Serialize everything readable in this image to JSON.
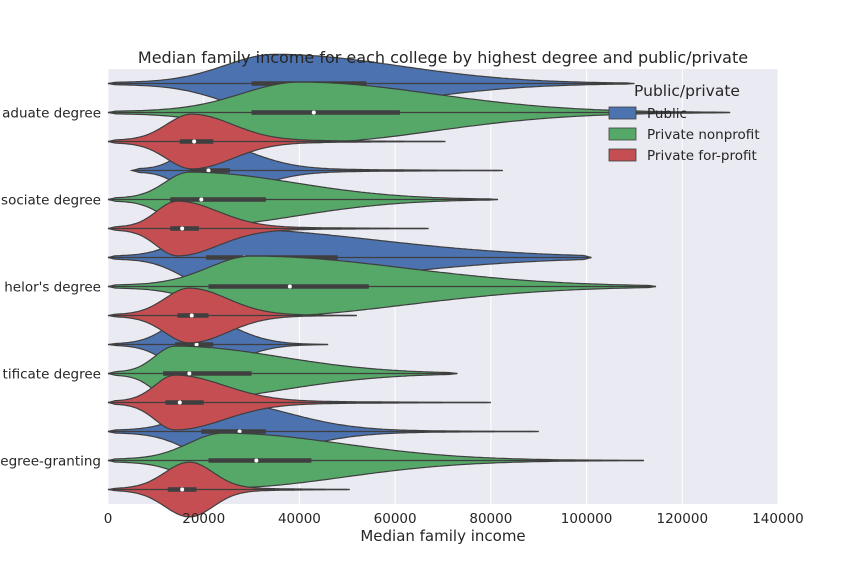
{
  "chart_data": {
    "type": "violin",
    "title": "Median family income for each college by highest degree and public/private",
    "xlabel": "Median family income",
    "ylabel": "",
    "xlim": [
      0,
      140000
    ],
    "xticks": [
      0,
      20000,
      40000,
      60000,
      80000,
      100000,
      120000,
      140000
    ],
    "xtick_labels": [
      "0",
      "20000",
      "40000",
      "60000",
      "80000",
      "100000",
      "120000",
      "140000"
    ],
    "orientation": "horizontal",
    "grid": true,
    "categories": [
      "Graduate degree",
      "Associate degree",
      "Bachelor's degree",
      "Certificate degree",
      "Non-degree-granting"
    ],
    "category_labels_visible": [
      "aduate degree",
      "sociate degree",
      "helor's degree",
      "tificate degree",
      "egree-granting"
    ],
    "legend": {
      "title": "Public/private",
      "placement": "top-right",
      "entries": [
        {
          "name": "Public",
          "color": "#4c72b0"
        },
        {
          "name": "Private nonprofit",
          "color": "#55a868"
        },
        {
          "name": "Private for-profit",
          "color": "#c44e52"
        }
      ]
    },
    "series": [
      {
        "name": "Public",
        "color": "#4c72b0",
        "groups": [
          {
            "min": 0,
            "q1": 30000,
            "median": 39500,
            "q3": 54000,
            "max": 110000,
            "peak": 35000,
            "width": 0.48
          },
          {
            "min": 5000,
            "q1": 17000,
            "median": 21000,
            "q3": 25500,
            "max": 82500,
            "peak": 20000,
            "width": 0.48
          },
          {
            "min": 0,
            "q1": 20500,
            "median": 28500,
            "q3": 48000,
            "max": 101000,
            "peak": 22000,
            "width": 0.48
          },
          {
            "min": 0,
            "q1": 14000,
            "median": 18500,
            "q3": 22000,
            "max": 46000,
            "peak": 18000,
            "width": 0.48
          },
          {
            "min": 0,
            "q1": 19500,
            "median": 27500,
            "q3": 33000,
            "max": 90000,
            "peak": 24000,
            "width": 0.48
          }
        ]
      },
      {
        "name": "Private nonprofit",
        "color": "#55a868",
        "groups": [
          {
            "min": 0,
            "q1": 30000,
            "median": 43000,
            "q3": 61000,
            "max": 130000,
            "peak": 40000,
            "width": 0.5
          },
          {
            "min": 0,
            "q1": 13000,
            "median": 19500,
            "q3": 33000,
            "max": 81500,
            "peak": 17000,
            "width": 0.45
          },
          {
            "min": 0,
            "q1": 21000,
            "median": 38000,
            "q3": 54500,
            "max": 114500,
            "peak": 30000,
            "width": 0.5
          },
          {
            "min": 0,
            "q1": 11500,
            "median": 17000,
            "q3": 30000,
            "max": 73000,
            "peak": 14000,
            "width": 0.45
          },
          {
            "min": 0,
            "q1": 21000,
            "median": 31000,
            "q3": 42500,
            "max": 112000,
            "peak": 24000,
            "width": 0.45
          }
        ]
      },
      {
        "name": "Private for-profit",
        "color": "#c44e52",
        "groups": [
          {
            "min": 0,
            "q1": 15000,
            "median": 18000,
            "q3": 22000,
            "max": 70500,
            "peak": 17500,
            "width": 0.45
          },
          {
            "min": 0,
            "q1": 13000,
            "median": 15500,
            "q3": 19000,
            "max": 67000,
            "peak": 14500,
            "width": 0.45
          },
          {
            "min": 0,
            "q1": 14500,
            "median": 17500,
            "q3": 21000,
            "max": 52000,
            "peak": 17000,
            "width": 0.45
          },
          {
            "min": 0,
            "q1": 12000,
            "median": 15000,
            "q3": 20000,
            "max": 80000,
            "peak": 14000,
            "width": 0.45
          },
          {
            "min": 0,
            "q1": 12500,
            "median": 15500,
            "q3": 18500,
            "max": 50500,
            "peak": 17000,
            "width": 0.45
          }
        ]
      }
    ]
  }
}
